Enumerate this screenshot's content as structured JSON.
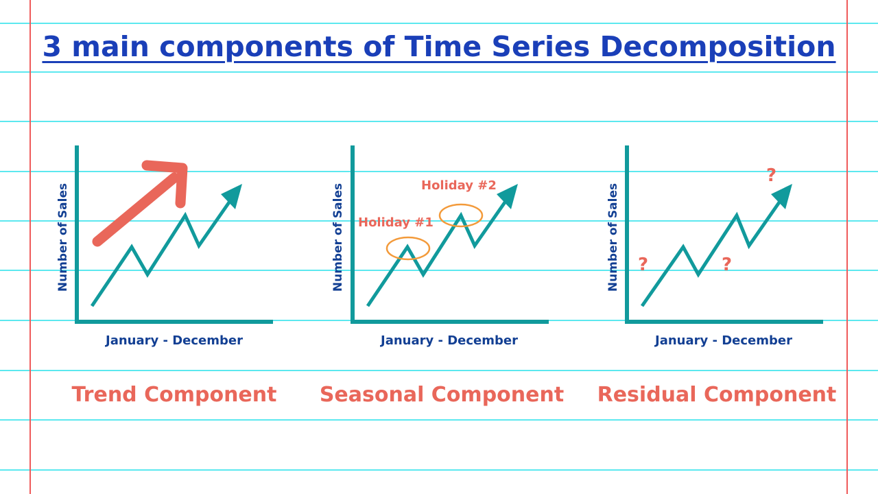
{
  "title": "3 main components of Time Series Decomposition",
  "panels": [
    {
      "x_label": "January - December",
      "y_label": "Number of Sales",
      "component": "Trend Component"
    },
    {
      "x_label": "January - December",
      "y_label": "Number of Sales",
      "component": "Seasonal Component",
      "annotations": [
        "Holiday #1",
        "Holiday #2"
      ]
    },
    {
      "x_label": "January - December",
      "y_label": "Number of Sales",
      "component": "Residual Component",
      "markers": [
        "?",
        "?",
        "?"
      ]
    }
  ],
  "colors": {
    "title": "#1a3fb8",
    "axis_label": "#123f93",
    "component_label": "#e9675a",
    "axis_and_line": "#119a9c",
    "trend_arrow": "#e9675a",
    "holiday_circle": "#f39a3a",
    "ruled_line": "#5ce8ef",
    "margin_line": "#ef5a5a"
  }
}
